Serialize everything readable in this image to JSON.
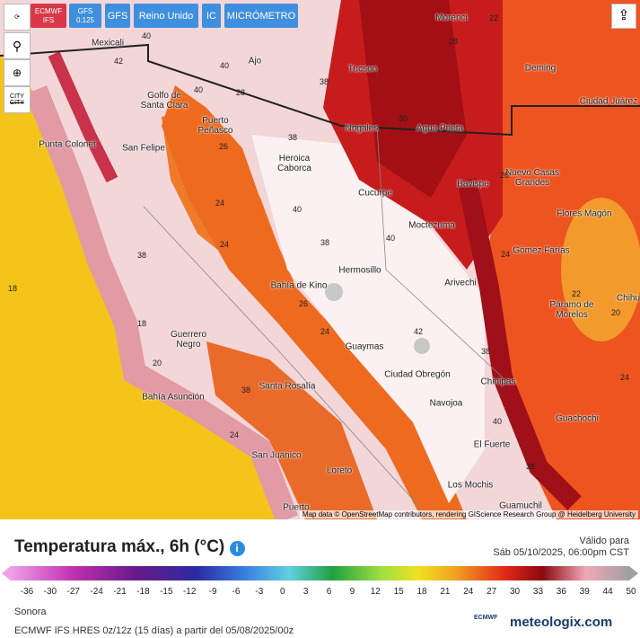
{
  "toolbar": {
    "buttons": [
      "ECMWF IFS",
      "GFS 0.125",
      "GFS",
      "Reino Unido",
      "IC",
      "MICRÓMETRO"
    ],
    "city_labels": [
      "CITY",
      "CITY"
    ]
  },
  "map": {
    "cities": [
      "Mexicali",
      "Tucson",
      "Morenci",
      "Deming",
      "Ciudad Juárez",
      "Ajo",
      "Golfo de Santa Clara",
      "Puerto Peñasco",
      "Punta Colonet",
      "San Felipe",
      "Nogales",
      "Agua Prieta",
      "Heroica Caborca",
      "Cucurpe",
      "Bavispe",
      "Nuevo Casas Grandes",
      "Flores Magón",
      "Moctezuma",
      "Gómez Farías",
      "Hermosillo",
      "Bahía de Kino",
      "Arivechi",
      "Chihu",
      "Páramo de Morelos",
      "Guerrero Negro",
      "Guaymas",
      "Ciudad Obregón",
      "Bahía Asunción",
      "Santa Rosalía",
      "Chinipas",
      "Navojoa",
      "Guachochi",
      "El Fuerte",
      "San Juanico",
      "Loreto",
      "Los Mochis",
      "Guamuchil",
      "Puerto"
    ],
    "contours": [
      40,
      42,
      40,
      40,
      38,
      38,
      28,
      26,
      40,
      38,
      40,
      42,
      38,
      24,
      24,
      38,
      18,
      18,
      24,
      26,
      38,
      20,
      24,
      40,
      38,
      22,
      28,
      30,
      26,
      24,
      22,
      20,
      24
    ],
    "attribution": "Map data © OpenStreetMap contributors, rendering GIScience Research Group @ Heidelberg University"
  },
  "panel": {
    "title": "Temperatura máx., 6h (°C)",
    "valid_label": "Válido para",
    "valid_time": "Sáb 05/10/2025, 06:00pm CST",
    "scale_ticks": [
      -36,
      -30,
      -27,
      -24,
      -21,
      -18,
      -15,
      -12,
      -9,
      -6,
      -3,
      0,
      3,
      6,
      9,
      12,
      15,
      18,
      21,
      24,
      27,
      30,
      33,
      36,
      39,
      44,
      50
    ],
    "region": "Sonora",
    "model_run": "ECMWF IFS HRES 0z/12z (15 días) a partir del 05/08/2025/00z",
    "ecmwf_logo": "ECMWF",
    "brand": "meteologix.com"
  }
}
